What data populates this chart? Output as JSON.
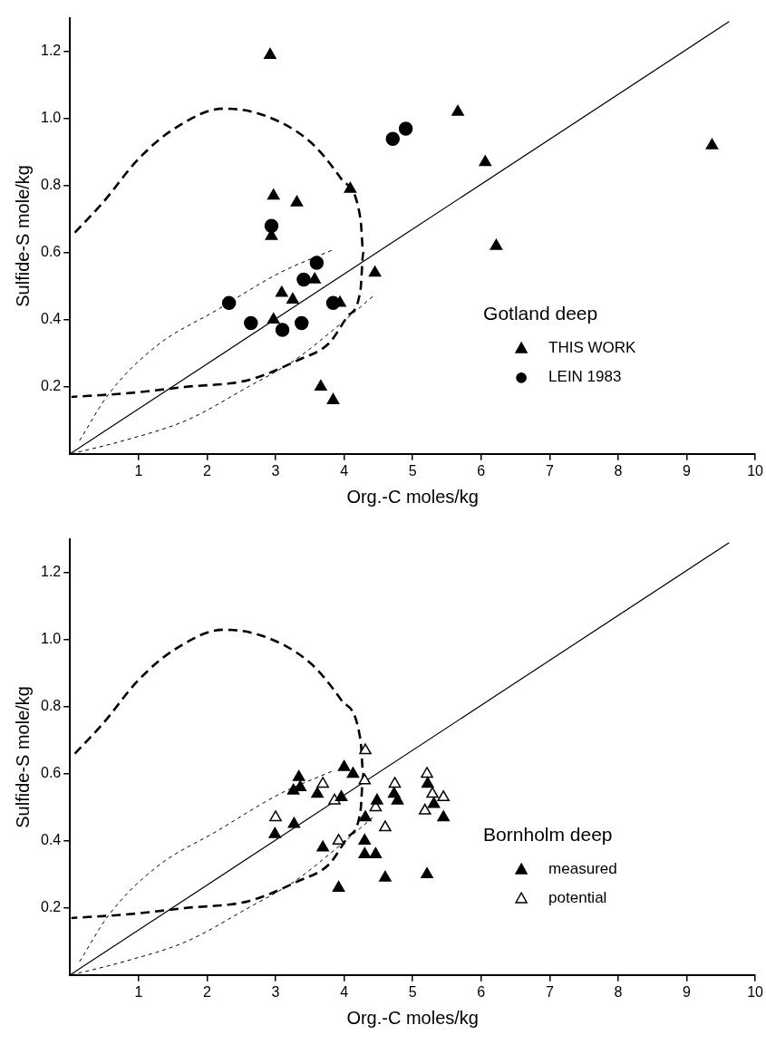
{
  "chart_data": [
    {
      "type": "scatter",
      "xlabel": "Org.-C moles/kg",
      "ylabel": "Sulfide-S mole/kg",
      "legend_title": "Gotland deep",
      "legend": "bottom right",
      "grid": false,
      "xlim": [
        0,
        10
      ],
      "ylim": [
        0,
        1.3
      ],
      "xticks": [
        1,
        2,
        3,
        4,
        5,
        6,
        7,
        8,
        9,
        10
      ],
      "yticks": [
        0.2,
        0.4,
        0.6,
        0.8,
        {
          "value": 1,
          "label": "1.0"
        },
        1.2
      ],
      "series": [
        {
          "name": "THIS WORK",
          "marker": "triangle",
          "color": "#000000",
          "x": [
            2.92,
            2.97,
            3.31,
            4.09,
            2.94,
            4.45,
            3.57,
            3.09,
            3.25,
            3.94,
            2.97,
            3.66,
            3.84,
            5.66,
            6.06,
            6.22,
            9.37
          ],
          "values": [
            1.19,
            0.77,
            0.75,
            0.79,
            0.65,
            0.54,
            0.52,
            0.48,
            0.46,
            0.45,
            0.4,
            0.2,
            0.16,
            1.02,
            0.87,
            0.62,
            0.92
          ]
        },
        {
          "name": "LEIN 1983",
          "marker": "circle",
          "color": "#000000",
          "x": [
            2.32,
            2.64,
            3.1,
            2.94,
            3.41,
            3.6,
            3.38,
            3.84,
            4.71,
            4.9
          ],
          "values": [
            0.45,
            0.39,
            0.37,
            0.68,
            0.52,
            0.57,
            0.39,
            0.45,
            0.94,
            0.97
          ]
        },
        {
          "type": "line",
          "marker": "none",
          "line_style": "solid",
          "color": "#000000",
          "x": [
            0,
            9.62
          ],
          "values": [
            0,
            1.29
          ]
        },
        {
          "type": "line",
          "marker": "none",
          "line_style": "dashed",
          "color": "#000000",
          "x": [
            0.07,
            0.48,
            1.0,
            1.52,
            2.24,
            2.83,
            3.51,
            3.96,
            4.24,
            4.28,
            4.24,
            4.05,
            3.78,
            3.33,
            2.6,
            1.7,
            0.79,
            0.02
          ],
          "values": [
            0.66,
            0.75,
            0.88,
            0.97,
            1.03,
            1.01,
            0.93,
            0.82,
            0.7,
            0.6,
            0.49,
            0.41,
            0.33,
            0.28,
            0.22,
            0.2,
            0.18,
            0.17
          ]
        },
        {
          "type": "line",
          "marker": "none",
          "line_style": "dotted",
          "color": "#000000",
          "x": [
            0.14,
            0.57,
            1.25,
            2.15,
            3.06,
            3.85
          ],
          "values": [
            0.04,
            0.18,
            0.32,
            0.43,
            0.54,
            0.61
          ]
        },
        {
          "type": "line",
          "marker": "none",
          "line_style": "dotted",
          "color": "#000000",
          "x": [
            0.02,
            0.79,
            1.7,
            2.6,
            3.28,
            3.96,
            4.42
          ],
          "values": [
            0.0,
            0.04,
            0.1,
            0.2,
            0.28,
            0.39,
            0.47
          ]
        }
      ]
    },
    {
      "type": "scatter",
      "xlabel": "Org.-C moles/kg",
      "ylabel": "Sulfide-S mole/kg",
      "legend_title": "Bornholm deep",
      "legend": "bottom right",
      "grid": false,
      "xlim": [
        0,
        10
      ],
      "ylim": [
        0,
        1.3
      ],
      "xticks": [
        1,
        2,
        3,
        4,
        5,
        6,
        7,
        8,
        9,
        10
      ],
      "yticks": [
        0.2,
        0.4,
        0.6,
        0.8,
        {
          "value": 1,
          "label": "1.0"
        },
        1.2
      ],
      "series": [
        {
          "name": "measured",
          "marker": "triangle",
          "color": "#000000",
          "x": [
            3.34,
            3.26,
            3.36,
            3.61,
            3.96,
            4.0,
            4.13,
            2.99,
            3.27,
            3.69,
            3.92,
            4.31,
            4.3,
            4.3,
            4.46,
            4.48,
            4.6,
            4.73,
            4.78,
            5.22,
            5.31,
            5.45,
            5.21
          ],
          "values": [
            0.59,
            0.55,
            0.56,
            0.54,
            0.53,
            0.62,
            0.6,
            0.42,
            0.45,
            0.38,
            0.26,
            0.47,
            0.4,
            0.36,
            0.36,
            0.52,
            0.29,
            0.54,
            0.52,
            0.57,
            0.51,
            0.47,
            0.3
          ]
        },
        {
          "name": "potential",
          "marker": "triangle",
          "color": "#ffffff",
          "x": [
            3.0,
            3.69,
            3.86,
            3.92,
            4.31,
            4.3,
            4.46,
            4.6,
            4.74,
            5.21,
            5.29,
            5.45,
            5.18
          ],
          "values": [
            0.47,
            0.57,
            0.52,
            0.4,
            0.67,
            0.58,
            0.5,
            0.44,
            0.57,
            0.6,
            0.54,
            0.53,
            0.49
          ]
        },
        {
          "type": "line",
          "marker": "none",
          "line_style": "solid",
          "color": "#000000",
          "x": [
            0,
            9.62
          ],
          "values": [
            0,
            1.29
          ]
        },
        {
          "type": "line",
          "marker": "none",
          "line_style": "dashed",
          "color": "#000000",
          "x": [
            0.07,
            0.48,
            1.0,
            1.52,
            2.24,
            2.83,
            3.51,
            3.96,
            4.24,
            4.28,
            4.24,
            4.05,
            3.78,
            3.33,
            2.6,
            1.7,
            0.79,
            0.02
          ],
          "values": [
            0.66,
            0.75,
            0.88,
            0.97,
            1.03,
            1.01,
            0.93,
            0.82,
            0.7,
            0.6,
            0.49,
            0.41,
            0.33,
            0.28,
            0.22,
            0.2,
            0.18,
            0.17
          ]
        },
        {
          "type": "line",
          "marker": "none",
          "line_style": "dotted",
          "color": "#000000",
          "x": [
            0.14,
            0.57,
            1.25,
            2.15,
            3.06,
            3.85
          ],
          "values": [
            0.04,
            0.18,
            0.32,
            0.43,
            0.54,
            0.61
          ]
        },
        {
          "type": "line",
          "marker": "none",
          "line_style": "dotted",
          "color": "#000000",
          "x": [
            0.02,
            0.79,
            1.7,
            2.6,
            3.28,
            3.96,
            4.42
          ],
          "values": [
            0.0,
            0.04,
            0.1,
            0.2,
            0.28,
            0.39,
            0.47
          ]
        }
      ]
    }
  ]
}
